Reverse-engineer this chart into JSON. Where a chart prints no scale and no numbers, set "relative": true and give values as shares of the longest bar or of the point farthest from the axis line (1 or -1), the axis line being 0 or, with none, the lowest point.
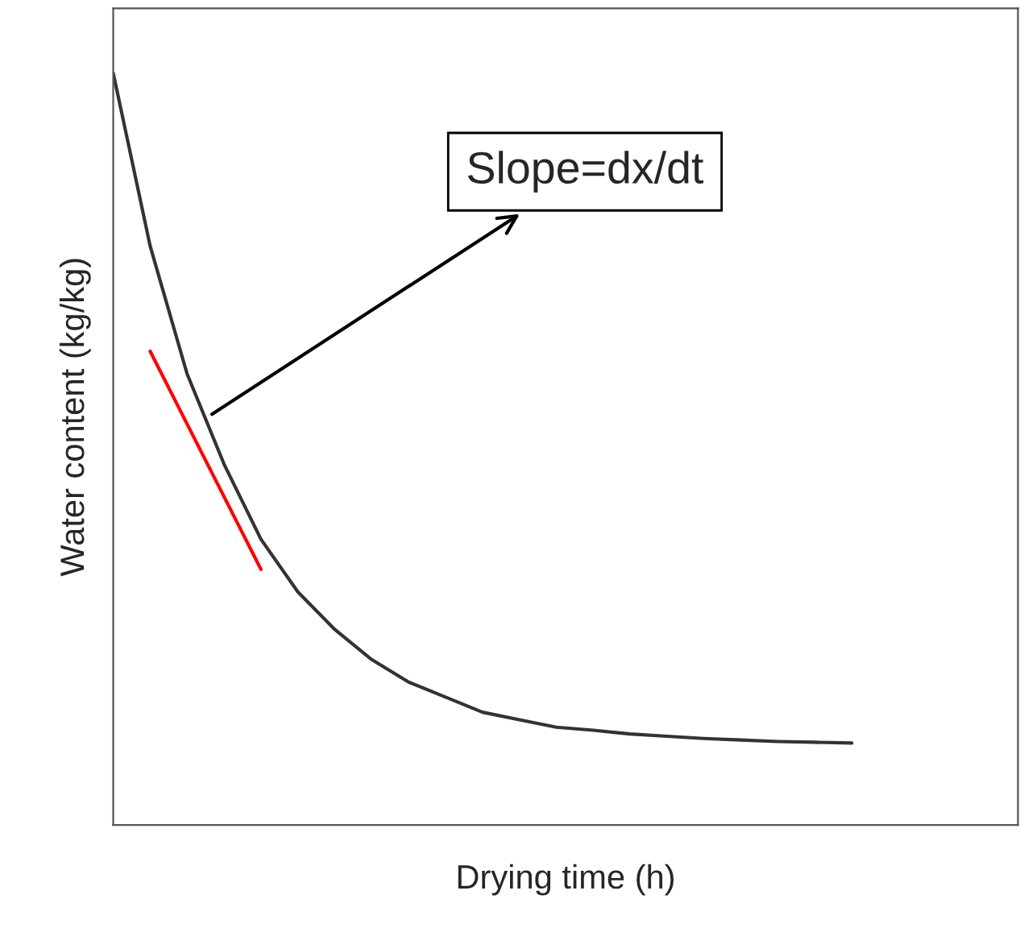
{
  "chart_data": {
    "type": "line",
    "relative": true,
    "xlabel": "Drying time (h)",
    "ylabel": "Water content (kg/kg)",
    "categories": [
      null,
      null,
      null,
      null,
      null,
      null,
      null,
      null,
      null,
      null,
      null,
      null,
      null,
      null,
      null,
      null,
      null,
      null,
      null,
      null,
      null
    ],
    "series": [
      {
        "color": "#333333",
        "values": [
          1.0,
          0.77,
          0.6,
          0.48,
          0.38,
          0.31,
          0.26,
          0.22,
          0.19,
          0.17,
          0.15,
          0.14,
          0.13,
          0.126,
          0.121,
          0.118,
          0.115,
          0.113,
          0.111,
          0.11,
          0.109
        ]
      },
      {
        "type": "line",
        "color": "#ff0000",
        "values": [
          null,
          0.63,
          null,
          null,
          0.34,
          null,
          null,
          null,
          null,
          null,
          null,
          null,
          null,
          null,
          null,
          null,
          null,
          null,
          null,
          null,
          null
        ]
      }
    ],
    "annotations": [
      "Slope=dx/dt"
    ],
    "grid": false,
    "legend": false,
    "marker": "none",
    "line_style": "solid"
  }
}
